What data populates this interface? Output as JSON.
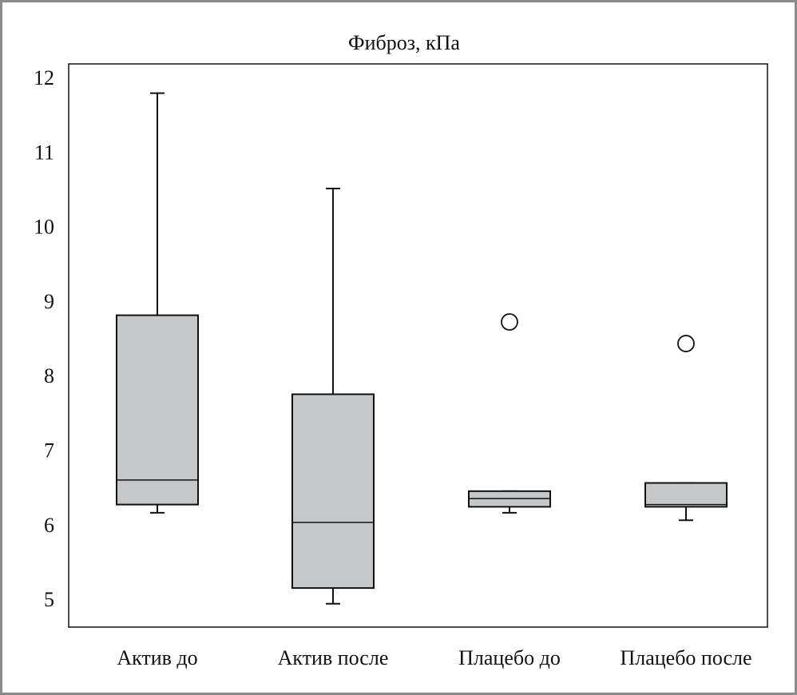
{
  "chart_data": {
    "type": "boxplot",
    "title": "Фиброз, кПа",
    "xlabel": "",
    "ylabel": "",
    "ylim": [
      4.8,
      12.18
    ],
    "yticks": [
      5,
      6,
      7,
      8,
      9,
      10,
      11,
      12
    ],
    "grid": false,
    "categories": [
      "Актив до",
      "Актив после",
      "Плацебо до",
      "Плацебо после"
    ],
    "boxes": [
      {
        "whisker_low": 6.16,
        "q1": 6.27,
        "median": 6.6,
        "q3": 8.81,
        "whisker_high": 11.79,
        "outliers": []
      },
      {
        "whisker_low": 4.94,
        "q1": 5.15,
        "median": 6.03,
        "q3": 7.75,
        "whisker_high": 10.51,
        "outliers": []
      },
      {
        "whisker_low": 6.16,
        "q1": 6.24,
        "median": 6.35,
        "q3": 6.45,
        "whisker_high": 6.45,
        "outliers": [
          8.72
        ]
      },
      {
        "whisker_low": 6.06,
        "q1": 6.24,
        "median": 6.27,
        "q3": 6.56,
        "whisker_high": 6.56,
        "outliers": [
          8.43
        ]
      }
    ],
    "colors": {
      "box_fill": "#c6c7c9",
      "line": "#111111"
    }
  }
}
